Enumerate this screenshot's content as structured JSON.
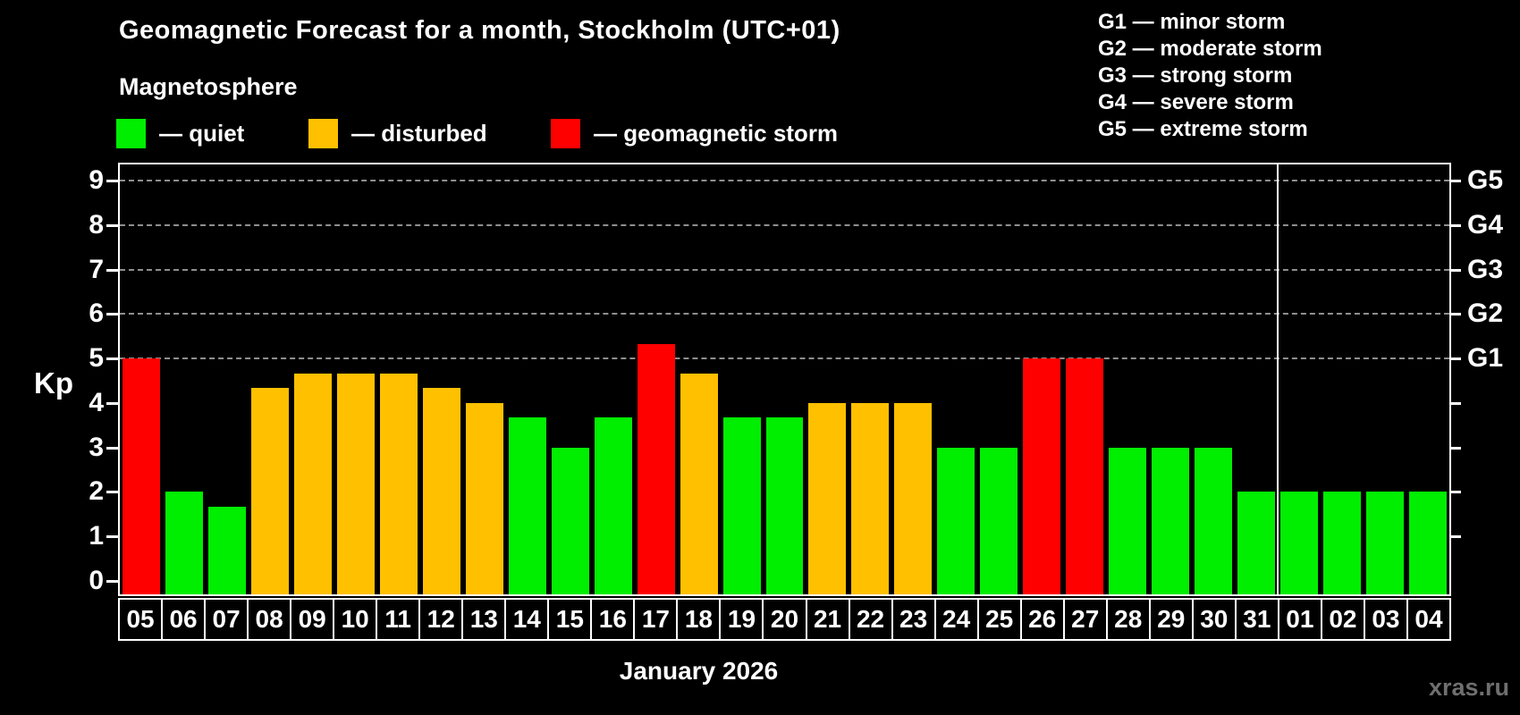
{
  "header": {
    "title": "Geomagnetic Forecast for a month, Stockholm (UTC+01)",
    "subtitle": "Magnetosphere"
  },
  "legend": {
    "items": [
      {
        "key": "quiet",
        "label": "— quiet"
      },
      {
        "key": "disturbed",
        "label": "— disturbed"
      },
      {
        "key": "storm",
        "label": "— geomagnetic storm"
      }
    ]
  },
  "storm_scale_legend": {
    "items": [
      "G1 — minor storm",
      "G2 — moderate storm",
      "G3 — strong storm",
      "G4 — severe storm",
      "G5 — extreme storm"
    ]
  },
  "colors": {
    "quiet": "#00ee00",
    "disturbed": "#ffc000",
    "storm": "#ff0000",
    "grid": "#8f8f8f",
    "axis": "#ffffff",
    "watermark": "#6f6f6f",
    "background": "#000000"
  },
  "chart_data": {
    "type": "bar",
    "title": "Geomagnetic Forecast for a month, Stockholm (UTC+01)",
    "subtitle": "Magnetosphere",
    "xlabel": "January 2026",
    "ylabel_left": "Kp",
    "ylim": [
      0,
      9.4
    ],
    "grid": "dashed horizontal at Kp 5-9",
    "legend_position": "top-left",
    "left_ticks": [
      0,
      1,
      2,
      3,
      4,
      5,
      6,
      7,
      8,
      9
    ],
    "right_ticks": [
      1,
      2,
      3,
      4,
      5,
      6,
      7,
      8,
      9
    ],
    "right_labels": {
      "5": "G1",
      "6": "G2",
      "7": "G3",
      "8": "G4",
      "9": "G5"
    },
    "gridlines_at": [
      5,
      6,
      7,
      8,
      9
    ],
    "month_separator_after_index": 26,
    "bars": [
      {
        "date": "05",
        "kp": 5.0,
        "status": "storm"
      },
      {
        "date": "06",
        "kp": 2.0,
        "status": "quiet"
      },
      {
        "date": "07",
        "kp": 1.67,
        "status": "quiet"
      },
      {
        "date": "08",
        "kp": 4.33,
        "status": "disturbed"
      },
      {
        "date": "09",
        "kp": 4.67,
        "status": "disturbed"
      },
      {
        "date": "10",
        "kp": 4.67,
        "status": "disturbed"
      },
      {
        "date": "11",
        "kp": 4.67,
        "status": "disturbed"
      },
      {
        "date": "12",
        "kp": 4.33,
        "status": "disturbed"
      },
      {
        "date": "13",
        "kp": 4.0,
        "status": "disturbed"
      },
      {
        "date": "14",
        "kp": 3.67,
        "status": "quiet"
      },
      {
        "date": "15",
        "kp": 3.0,
        "status": "quiet"
      },
      {
        "date": "16",
        "kp": 3.67,
        "status": "quiet"
      },
      {
        "date": "17",
        "kp": 5.33,
        "status": "storm"
      },
      {
        "date": "18",
        "kp": 4.67,
        "status": "disturbed"
      },
      {
        "date": "19",
        "kp": 3.67,
        "status": "quiet"
      },
      {
        "date": "20",
        "kp": 3.67,
        "status": "quiet"
      },
      {
        "date": "21",
        "kp": 4.0,
        "status": "disturbed"
      },
      {
        "date": "22",
        "kp": 4.0,
        "status": "disturbed"
      },
      {
        "date": "23",
        "kp": 4.0,
        "status": "disturbed"
      },
      {
        "date": "24",
        "kp": 3.0,
        "status": "quiet"
      },
      {
        "date": "25",
        "kp": 3.0,
        "status": "quiet"
      },
      {
        "date": "26",
        "kp": 5.0,
        "status": "storm"
      },
      {
        "date": "27",
        "kp": 5.0,
        "status": "storm"
      },
      {
        "date": "28",
        "kp": 3.0,
        "status": "quiet"
      },
      {
        "date": "29",
        "kp": 3.0,
        "status": "quiet"
      },
      {
        "date": "30",
        "kp": 3.0,
        "status": "quiet"
      },
      {
        "date": "31",
        "kp": 2.0,
        "status": "quiet"
      },
      {
        "date": "01",
        "kp": 2.0,
        "status": "quiet"
      },
      {
        "date": "02",
        "kp": 2.0,
        "status": "quiet"
      },
      {
        "date": "03",
        "kp": 2.0,
        "status": "quiet"
      },
      {
        "date": "04",
        "kp": 2.0,
        "status": "quiet"
      }
    ]
  },
  "watermark": "xras.ru"
}
